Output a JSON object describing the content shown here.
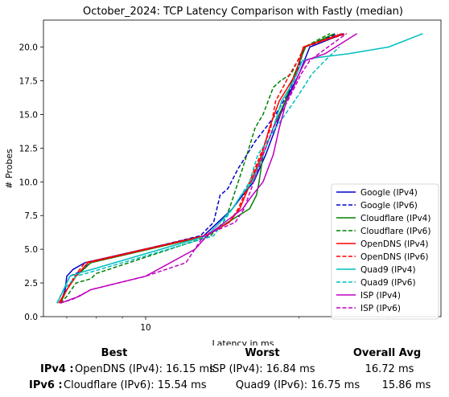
{
  "chart_data": {
    "type": "line",
    "title": "October_2024: TCP Latency Comparison with Fastly (median)",
    "xlabel": "Latency in ms",
    "ylabel": "# Probes",
    "x_scale": "log",
    "xlim": [
      6.3,
      38
    ],
    "ylim": [
      0,
      22
    ],
    "yticks": [
      0.0,
      2.5,
      5.0,
      7.5,
      10.0,
      12.5,
      15.0,
      17.5,
      20.0
    ],
    "ytick_labels": [
      "0.0",
      "2.5",
      "5.0",
      "7.5",
      "10.0",
      "12.5",
      "15.0",
      "17.5",
      "20.0"
    ],
    "xticks": [
      10
    ],
    "xtick_labels": [
      "10"
    ],
    "legend_position": "lower-right",
    "grid": false,
    "series": [
      {
        "name": "Google (IPv4)",
        "color": "#0000cc",
        "dash": "solid",
        "x": [
          6.8,
          6.95,
          7.0,
          7.2,
          7.6,
          13.0,
          14.8,
          15.5,
          16.3,
          17.2,
          18.0,
          18.8,
          19.4,
          20.0,
          20.5,
          21.0,
          24.5
        ],
        "y": [
          1,
          2,
          3,
          3.5,
          4,
          6,
          8,
          9,
          10,
          12,
          14,
          16,
          17,
          18,
          19,
          20,
          21
        ]
      },
      {
        "name": "Google (IPv6)",
        "color": "#0000cc",
        "dash": "dashed",
        "x": [
          6.7,
          6.9,
          7.1,
          7.4,
          7.8,
          12.8,
          13.6,
          14.0,
          14.5,
          15.2,
          15.8,
          16.4,
          17.2,
          18.0,
          19.0,
          19.8,
          20.5,
          23.8
        ],
        "y": [
          1,
          2,
          3,
          3.3,
          4,
          6,
          7,
          9,
          9.5,
          11,
          12,
          13,
          14,
          15,
          16.5,
          18,
          20,
          21
        ]
      },
      {
        "name": "Cloudflare (IPv4)",
        "color": "#008000",
        "dash": "solid",
        "x": [
          6.8,
          7.0,
          7.3,
          7.8,
          13.2,
          14.5,
          16.0,
          16.5,
          16.7,
          17.0,
          17.8,
          18.8,
          19.6,
          20.6,
          23.5
        ],
        "y": [
          1,
          2,
          3,
          4,
          6,
          7,
          8,
          9,
          10,
          12,
          14,
          16,
          18,
          20,
          21
        ]
      },
      {
        "name": "Cloudflare (IPv6)",
        "color": "#008000",
        "dash": "dashed",
        "x": [
          6.8,
          7.0,
          7.3,
          7.8,
          8.0,
          13.4,
          14.2,
          14.6,
          15.2,
          15.8,
          16.4,
          17.0,
          17.4,
          17.8,
          18.4,
          19.3,
          20.5,
          23.0
        ],
        "y": [
          1,
          1.5,
          2.5,
          2.8,
          3.2,
          6,
          7,
          8,
          10,
          12,
          14,
          15,
          16,
          17,
          17.5,
          18,
          20,
          21
        ]
      },
      {
        "name": "OpenDNS (IPv4)",
        "color": "#ff0000",
        "dash": "solid",
        "x": [
          6.75,
          7.0,
          7.3,
          7.7,
          13.1,
          14.6,
          15.3,
          16.1,
          16.9,
          17.5,
          18.3,
          19.0,
          19.7,
          20.4,
          24.3
        ],
        "y": [
          1,
          2,
          3,
          4,
          6,
          7,
          8,
          10,
          12,
          14,
          16,
          17,
          18,
          20,
          21
        ]
      },
      {
        "name": "OpenDNS (IPv6)",
        "color": "#ff0000",
        "dash": "dashed",
        "x": [
          6.8,
          7.0,
          7.25,
          7.6,
          13.0,
          14.6,
          15.2,
          16.0,
          16.8,
          17.6,
          18.0,
          18.6,
          19.2,
          19.9,
          20.5,
          24.8
        ],
        "y": [
          1,
          2,
          3,
          4,
          6,
          7,
          8,
          10,
          12,
          14,
          16,
          17,
          18,
          19,
          20,
          21
        ]
      },
      {
        "name": "Quad9 (IPv4)",
        "color": "#00bfbf",
        "dash": "solid",
        "x": [
          6.7,
          6.9,
          7.1,
          7.5,
          8.0,
          13.2,
          14.0,
          14.8,
          15.4,
          16.2,
          17.0,
          17.8,
          18.5,
          19.2,
          19.8,
          20.3,
          21.5,
          25.0,
          30.0,
          35.0
        ],
        "y": [
          1,
          2,
          3,
          3.3,
          3.6,
          6,
          7,
          8,
          9,
          10,
          12,
          14,
          16,
          17,
          18,
          19,
          19.2,
          19.5,
          20,
          21
        ]
      },
      {
        "name": "Quad9 (IPv6)",
        "color": "#00bfbf",
        "dash": "dashed",
        "x": [
          6.7,
          6.9,
          7.1,
          7.3,
          7.8,
          13.6,
          14.2,
          14.8,
          15.4,
          16.0,
          16.6,
          17.3,
          18.0,
          18.8,
          19.6,
          20.4,
          21.2,
          22.5,
          24.0
        ],
        "y": [
          1,
          2,
          2.5,
          3,
          3.3,
          6,
          7,
          8,
          9,
          10,
          12,
          13,
          14,
          15,
          16,
          17,
          18,
          19,
          20
        ]
      },
      {
        "name": "ISP (IPv4)",
        "color": "#bf00bf",
        "dash": "solid",
        "x": [
          6.8,
          7.4,
          7.8,
          10.0,
          12.5,
          13.2,
          15.5,
          16.2,
          17.0,
          17.8,
          18.3,
          18.9,
          19.5,
          20.0,
          20.6,
          22.5,
          26.0
        ],
        "y": [
          1,
          1.5,
          2,
          3,
          5,
          6,
          8,
          9,
          10,
          12,
          14,
          16,
          17,
          18,
          19,
          19.5,
          21
        ]
      },
      {
        "name": "ISP (IPv6)",
        "color": "#bf00bf",
        "dash": "dashed",
        "x": [
          6.8,
          7.2,
          7.8,
          10.0,
          12.0,
          13.0,
          15.0,
          15.6,
          16.3,
          17.0,
          17.8,
          18.4,
          19.0,
          19.6,
          20.2,
          21.0,
          22.8,
          24.8
        ],
        "y": [
          1,
          1.3,
          2,
          3,
          4,
          6,
          7,
          8,
          10,
          12,
          14,
          15,
          16,
          17,
          18,
          19,
          20,
          21
        ]
      }
    ]
  },
  "summary": {
    "headers": {
      "best": "Best",
      "worst": "Worst",
      "avg": "Overall Avg"
    },
    "rows": [
      {
        "label": "IPv4 :",
        "best": "OpenDNS (IPv4): 16.15 ms",
        "worst": "ISP (IPv4): 16.84 ms",
        "avg": "16.72 ms"
      },
      {
        "label": "IPv6 :",
        "best": "Cloudflare (IPv6): 15.54 ms",
        "worst": "Quad9 (IPv6): 16.75 ms",
        "avg": "15.86 ms"
      }
    ]
  }
}
